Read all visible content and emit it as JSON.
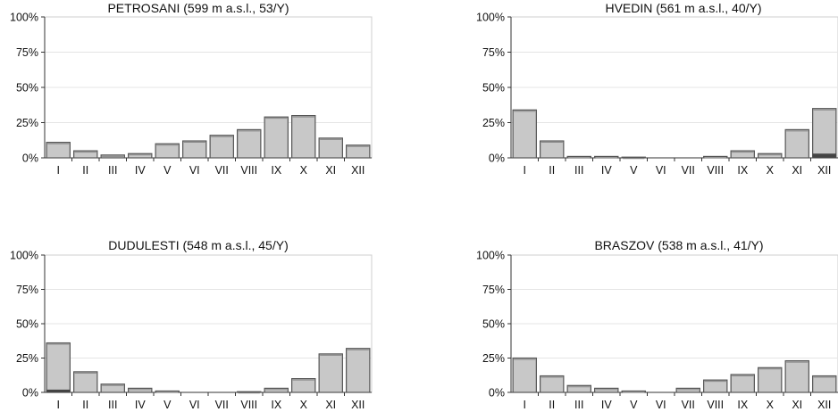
{
  "chart_data": [
    {
      "type": "bar",
      "title": "PETROSANI (599 m a.s.l., 53/Y)",
      "categories": [
        "I",
        "II",
        "III",
        "IV",
        "V",
        "VI",
        "VII",
        "VIII",
        "IX",
        "X",
        "XI",
        "XII"
      ],
      "values": [
        11,
        5,
        2,
        3,
        10,
        12,
        16,
        20,
        29,
        30,
        14,
        9
      ],
      "dark_values": [
        0,
        0,
        0,
        0,
        0,
        0,
        0,
        0,
        0,
        0,
        0,
        0
      ],
      "yticks": [
        "0%",
        "25%",
        "50%",
        "75%",
        "100%"
      ],
      "ylim": [
        0,
        100
      ],
      "grid": true
    },
    {
      "type": "bar",
      "title": "HVEDIN (561 m a.s.l., 40/Y)",
      "categories": [
        "I",
        "II",
        "III",
        "IV",
        "V",
        "VI",
        "VII",
        "VIII",
        "IX",
        "X",
        "XI",
        "XII"
      ],
      "values": [
        34,
        12,
        1,
        1,
        0.5,
        0,
        0,
        1,
        5,
        3,
        20,
        35
      ],
      "dark_values": [
        0,
        0,
        0,
        0,
        0,
        0,
        0,
        0,
        0,
        0,
        0,
        3
      ],
      "yticks": [
        "0%",
        "25%",
        "50%",
        "75%",
        "100%"
      ],
      "ylim": [
        0,
        100
      ],
      "grid": true
    },
    {
      "type": "bar",
      "title": "DUDULESTI (548 m a.s.l., 45/Y)",
      "categories": [
        "I",
        "II",
        "III",
        "IV",
        "V",
        "VI",
        "VII",
        "VIII",
        "IX",
        "X",
        "XI",
        "XII"
      ],
      "values": [
        36,
        15,
        6,
        3,
        1,
        0,
        0,
        0.5,
        3,
        10,
        28,
        32
      ],
      "dark_values": [
        2,
        0,
        0,
        0,
        0,
        0,
        0,
        0,
        0,
        0,
        0,
        0
      ],
      "yticks": [
        "0%",
        "25%",
        "50%",
        "75%",
        "100%"
      ],
      "ylim": [
        0,
        100
      ],
      "grid": true
    },
    {
      "type": "bar",
      "title": "BRASZOV (538 m a.s.l., 41/Y)",
      "categories": [
        "I",
        "II",
        "III",
        "IV",
        "V",
        "VI",
        "VII",
        "VIII",
        "IX",
        "X",
        "XI",
        "XII"
      ],
      "values": [
        25,
        12,
        5,
        3,
        1,
        0,
        3,
        9,
        13,
        18,
        23,
        12
      ],
      "dark_values": [
        0,
        0,
        0,
        0,
        0,
        0,
        0,
        0,
        0,
        0,
        0,
        0
      ],
      "yticks": [
        "0%",
        "25%",
        "50%",
        "75%",
        "100%"
      ],
      "ylim": [
        0,
        100
      ],
      "grid": true
    }
  ],
  "colors": {
    "bar_fill": "#c8c8c8",
    "bar_stroke": "#555555",
    "bar_dark": "#444444",
    "grid": "#e4e4e4",
    "frame": "#cfcfcf",
    "axis": "#333333"
  }
}
